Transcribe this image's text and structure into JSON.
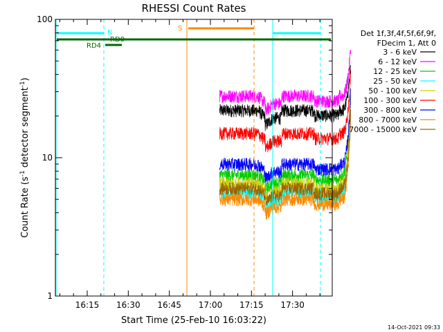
{
  "chart_data": {
    "type": "line",
    "title": "RHESSI Count Rates",
    "xlabel": "Start Time (25-Feb-10 16:03:22)",
    "ylabel_parts": [
      "Count Rate (s",
      "-1",
      " detector segment",
      "-1",
      ")"
    ],
    "yscale": "log",
    "ylim": [
      1,
      100
    ],
    "xlim_minutes_after_1600": [
      3.37,
      44.5
    ],
    "x_ticks": [
      "16:15",
      "16:30",
      "16:45",
      "17:00",
      "17:15",
      "17:30"
    ],
    "x_tick_minutes": [
      15,
      30,
      45,
      60,
      75,
      90
    ],
    "y_ticks": [
      "1",
      "10",
      "100"
    ],
    "legend_header": [
      "Det 1f,3f,4f,5f,6f,9f,",
      "FDecim 1, Att 0"
    ],
    "legend_position": "right",
    "series": [
      {
        "name": "3 - 6 keV",
        "color": "#000000",
        "pre": 22,
        "post_start": 25,
        "post_end": 22,
        "peak": 50
      },
      {
        "name": "6 - 12 keV",
        "color": "#ff00ff",
        "pre": 28,
        "post_start": 30,
        "post_end": 27,
        "peak": 65
      },
      {
        "name": "12 - 25 keV",
        "color": "#00cc00",
        "pre": 7.5,
        "post_start": 8,
        "post_end": 6.5,
        "peak": 30
      },
      {
        "name": "25 - 50 keV",
        "color": "#00ffff",
        "pre": 5.5,
        "post_start": 6,
        "post_end": 4.5,
        "peak": 20
      },
      {
        "name": "50 - 100 keV",
        "color": "#cccc00",
        "pre": 6.5,
        "post_start": 7,
        "post_end": 5.5,
        "peak": 25
      },
      {
        "name": "100 - 300 keV",
        "color": "#ff0000",
        "pre": 15,
        "post_start": 17,
        "post_end": 14,
        "peak": 40
      },
      {
        "name": "300 - 800 keV",
        "color": "#0000ff",
        "pre": 9,
        "post_start": 10,
        "post_end": 7,
        "peak": 30
      },
      {
        "name": "800 - 7000 keV",
        "color": "#ff8800",
        "pre": 5,
        "post_start": 5.5,
        "post_end": 4.5,
        "peak": 20
      },
      {
        "name": "7000 - 15000 keV",
        "color": "#996600",
        "pre": 6,
        "post_start": 6.5,
        "post_end": 5,
        "peak": 22
      }
    ],
    "annotations": {
      "night_label": "N",
      "saa_label": "S",
      "rd_labels": [
        "RD0",
        "RD4"
      ]
    },
    "colors": {
      "night": "#00ffff",
      "saa": "#ff8800",
      "rd": "#006600",
      "axis": "#000000"
    }
  },
  "footer": {
    "timestamp": "14-Oct-2021 09:33"
  }
}
